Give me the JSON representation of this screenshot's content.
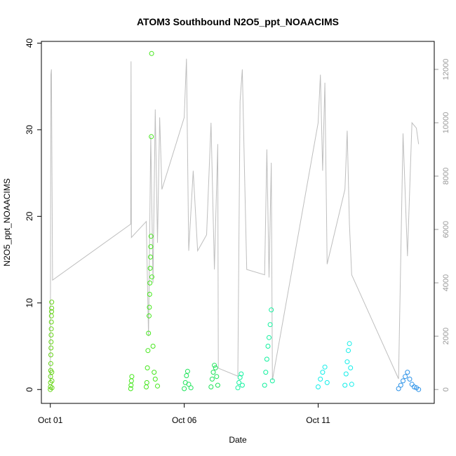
{
  "chart_data": {
    "type": "scatter",
    "title": "ATOM3 Southbound N2O5_ppt_NOAACIMS",
    "xlabel": "Date",
    "ylabel": "N2O5_ppt_NOAACIMS",
    "x_axis": {
      "type": "date",
      "range": [
        "2017-09-30T16:00",
        "2017-10-15T08:00"
      ],
      "ticks": [
        {
          "value": "2017-10-01",
          "label": "Oct 01"
        },
        {
          "value": "2017-10-06",
          "label": "Oct 06"
        },
        {
          "value": "2017-10-11",
          "label": "Oct 11"
        }
      ]
    },
    "y_left": {
      "range": [
        -1.6,
        40.2
      ],
      "ticks": [
        0,
        10,
        20,
        30,
        40
      ]
    },
    "y_right": {
      "range": [
        -520,
        13050
      ],
      "ticks": [
        0,
        2000,
        4000,
        6000,
        8000,
        10000,
        12000
      ]
    },
    "grid": false,
    "legend": "none",
    "background_line": {
      "color": "#bebebe",
      "axis": "right",
      "description_free": true,
      "points": [
        [
          "2017-10-01T00:00",
          300
        ],
        [
          "2017-10-01T00:30",
          11800
        ],
        [
          "2017-10-01T01:00",
          12000
        ],
        [
          "2017-10-01T02:00",
          4100
        ],
        [
          "2017-10-04T00:00",
          6200
        ],
        [
          "2017-10-04T00:20",
          12300
        ],
        [
          "2017-10-04T00:40",
          5700
        ],
        [
          "2017-10-04T14:00",
          6300
        ],
        [
          "2017-10-04T16:00",
          2000
        ],
        [
          "2017-10-04T18:00",
          9500
        ],
        [
          "2017-10-04T20:00",
          4000
        ],
        [
          "2017-10-04T22:00",
          10500
        ],
        [
          "2017-10-05T00:00",
          5500
        ],
        [
          "2017-10-05T02:00",
          10200
        ],
        [
          "2017-10-05T04:00",
          7500
        ],
        [
          "2017-10-06T00:00",
          10200
        ],
        [
          "2017-10-06T02:00",
          12400
        ],
        [
          "2017-10-06T04:00",
          5200
        ],
        [
          "2017-10-06T08:00",
          8200
        ],
        [
          "2017-10-06T12:00",
          5200
        ],
        [
          "2017-10-06T20:00",
          5800
        ],
        [
          "2017-10-07T00:00",
          10000
        ],
        [
          "2017-10-07T03:00",
          4500
        ],
        [
          "2017-10-07T06:00",
          9200
        ],
        [
          "2017-10-07T06:30",
          800
        ],
        [
          "2017-10-08T00:00",
          500
        ],
        [
          "2017-10-08T02:00",
          10800
        ],
        [
          "2017-10-08T04:00",
          12000
        ],
        [
          "2017-10-08T06:00",
          8200
        ],
        [
          "2017-10-08T08:00",
          4500
        ],
        [
          "2017-10-09T00:00",
          4300
        ],
        [
          "2017-10-09T02:00",
          9000
        ],
        [
          "2017-10-09T04:00",
          4200
        ],
        [
          "2017-10-09T06:00",
          8500
        ],
        [
          "2017-10-09T07:00",
          350
        ],
        [
          "2017-10-11T00:00",
          10000
        ],
        [
          "2017-10-11T02:00",
          11800
        ],
        [
          "2017-10-11T04:00",
          8200
        ],
        [
          "2017-10-11T06:00",
          11500
        ],
        [
          "2017-10-11T08:00",
          4700
        ],
        [
          "2017-10-12T00:00",
          7500
        ],
        [
          "2017-10-12T02:00",
          9700
        ],
        [
          "2017-10-12T04:00",
          6200
        ],
        [
          "2017-10-12T06:00",
          4300
        ],
        [
          "2017-10-14T00:00",
          400
        ],
        [
          "2017-10-14T04:00",
          9600
        ],
        [
          "2017-10-14T08:00",
          5000
        ],
        [
          "2017-10-14T12:00",
          10000
        ],
        [
          "2017-10-14T16:00",
          9800
        ],
        [
          "2017-10-14T18:00",
          9200
        ]
      ]
    },
    "series": [
      {
        "color": "#66d516",
        "points": [
          [
            "2017-10-01T00:00",
            0.0
          ],
          [
            "2017-10-01T00:05",
            0.3
          ],
          [
            "2017-10-01T00:10",
            0.8
          ],
          [
            "2017-10-01T00:15",
            1.5
          ],
          [
            "2017-10-01T00:20",
            2.2
          ],
          [
            "2017-10-01T00:25",
            3.0
          ],
          [
            "2017-10-01T00:30",
            4.0
          ],
          [
            "2017-10-01T00:35",
            4.8
          ],
          [
            "2017-10-01T00:40",
            5.5
          ],
          [
            "2017-10-01T00:45",
            6.3
          ],
          [
            "2017-10-01T00:50",
            7.0
          ],
          [
            "2017-10-01T00:55",
            7.8
          ],
          [
            "2017-10-01T01:00",
            8.5
          ],
          [
            "2017-10-01T01:05",
            9.0
          ],
          [
            "2017-10-01T01:10",
            9.4
          ],
          [
            "2017-10-01T01:15",
            10.1
          ],
          [
            "2017-10-01T01:20",
            2.0
          ],
          [
            "2017-10-01T01:25",
            1.0
          ],
          [
            "2017-10-01T01:30",
            0.2
          ]
        ]
      },
      {
        "color": "#44e71b",
        "points": [
          [
            "2017-10-04T00:00",
            0.1
          ],
          [
            "2017-10-04T00:20",
            0.5
          ],
          [
            "2017-10-04T00:40",
            1.0
          ],
          [
            "2017-10-04T01:00",
            1.5
          ],
          [
            "2017-10-04T14:00",
            0.3
          ],
          [
            "2017-10-04T14:30",
            0.8
          ],
          [
            "2017-10-04T15:00",
            2.5
          ],
          [
            "2017-10-04T15:30",
            4.5
          ],
          [
            "2017-10-04T16:00",
            6.5
          ],
          [
            "2017-10-04T16:30",
            8.5
          ],
          [
            "2017-10-04T16:45",
            9.5
          ],
          [
            "2017-10-04T17:00",
            11.0
          ],
          [
            "2017-10-04T17:15",
            12.3
          ],
          [
            "2017-10-04T17:30",
            14.0
          ],
          [
            "2017-10-04T17:45",
            15.3
          ],
          [
            "2017-10-04T18:00",
            16.5
          ],
          [
            "2017-10-04T18:15",
            17.7
          ],
          [
            "2017-10-04T18:30",
            29.2
          ],
          [
            "2017-10-04T18:45",
            38.8
          ],
          [
            "2017-10-04T19:00",
            13.0
          ],
          [
            "2017-10-04T20:00",
            5.0
          ],
          [
            "2017-10-04T21:00",
            2.0
          ],
          [
            "2017-10-04T22:00",
            1.2
          ],
          [
            "2017-10-05T00:00",
            0.4
          ]
        ]
      },
      {
        "color": "#1ee45a",
        "points": [
          [
            "2017-10-06T00:00",
            0.1
          ],
          [
            "2017-10-06T01:00",
            0.8
          ],
          [
            "2017-10-06T02:00",
            1.6
          ],
          [
            "2017-10-06T03:00",
            2.1
          ],
          [
            "2017-10-06T04:00",
            0.6
          ],
          [
            "2017-10-06T06:00",
            0.2
          ],
          [
            "2017-10-07T00:00",
            0.3
          ],
          [
            "2017-10-07T01:00",
            1.2
          ],
          [
            "2017-10-07T02:00",
            2.0
          ],
          [
            "2017-10-07T03:00",
            2.8
          ],
          [
            "2017-10-07T04:00",
            2.5
          ],
          [
            "2017-10-07T05:00",
            1.5
          ],
          [
            "2017-10-07T06:00",
            0.5
          ]
        ]
      },
      {
        "color": "#11f19e",
        "points": [
          [
            "2017-10-08T00:00",
            0.2
          ],
          [
            "2017-10-08T01:00",
            0.8
          ],
          [
            "2017-10-08T02:00",
            1.4
          ],
          [
            "2017-10-08T03:00",
            1.8
          ],
          [
            "2017-10-08T04:00",
            0.5
          ],
          [
            "2017-10-09T00:00",
            0.5
          ],
          [
            "2017-10-09T01:00",
            2.0
          ],
          [
            "2017-10-09T02:00",
            3.5
          ],
          [
            "2017-10-09T03:00",
            5.0
          ],
          [
            "2017-10-09T04:00",
            6.0
          ],
          [
            "2017-10-09T05:00",
            7.5
          ],
          [
            "2017-10-09T06:00",
            9.2
          ],
          [
            "2017-10-09T07:00",
            1.0
          ]
        ]
      },
      {
        "color": "#11eee9",
        "points": [
          [
            "2017-10-11T00:00",
            0.3
          ],
          [
            "2017-10-11T02:00",
            1.2
          ],
          [
            "2017-10-11T04:00",
            2.0
          ],
          [
            "2017-10-11T06:00",
            2.6
          ],
          [
            "2017-10-11T08:00",
            0.8
          ],
          [
            "2017-10-12T00:00",
            0.5
          ],
          [
            "2017-10-12T01:00",
            1.8
          ],
          [
            "2017-10-12T02:00",
            3.2
          ],
          [
            "2017-10-12T03:00",
            4.5
          ],
          [
            "2017-10-12T04:00",
            5.3
          ],
          [
            "2017-10-12T05:00",
            2.5
          ],
          [
            "2017-10-12T06:00",
            0.6
          ]
        ]
      },
      {
        "color": "#2b92e8",
        "points": [
          [
            "2017-10-14T00:00",
            0.1
          ],
          [
            "2017-10-14T02:00",
            0.5
          ],
          [
            "2017-10-14T04:00",
            1.0
          ],
          [
            "2017-10-14T06:00",
            1.5
          ],
          [
            "2017-10-14T08:00",
            2.0
          ],
          [
            "2017-10-14T10:00",
            1.2
          ],
          [
            "2017-10-14T12:00",
            0.6
          ],
          [
            "2017-10-14T14:00",
            0.3
          ],
          [
            "2017-10-14T16:00",
            0.2
          ],
          [
            "2017-10-14T18:00",
            0.0
          ]
        ]
      }
    ]
  }
}
